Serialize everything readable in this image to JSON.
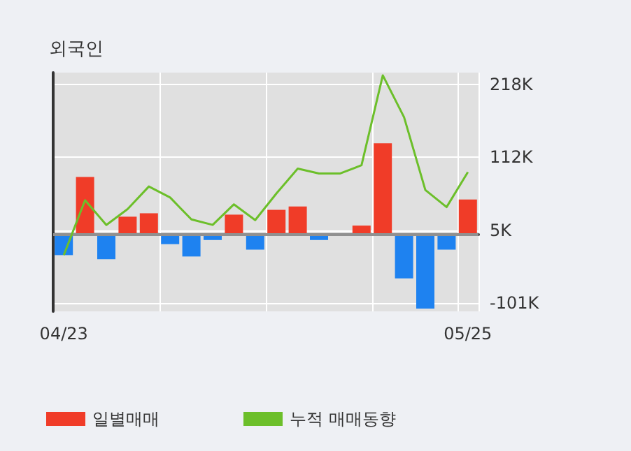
{
  "chart_data": {
    "type": "bar",
    "title": "외국인",
    "categories": [
      "04/23",
      null,
      null,
      null,
      null,
      null,
      null,
      null,
      null,
      null,
      null,
      null,
      null,
      null,
      null,
      null,
      null,
      null,
      null,
      "05/25"
    ],
    "series": [
      {
        "name": "일별매매",
        "color": "#f03c28",
        "colors": [
          "#1e82f0",
          "#f03c28",
          "#1e82f0",
          "#f03c28",
          "#f03c28",
          "#1e82f0",
          "#1e82f0",
          "#1e82f0",
          "#f03c28",
          "#1e82f0",
          "#f03c28",
          "#f03c28",
          "#1e82f0",
          "#f03c28",
          "#f03c28",
          "#f03c28",
          "#1e82f0",
          "#1e82f0",
          "#1e82f0",
          "#f03c28"
        ],
        "values": [
          -31,
          83,
          -37,
          25,
          30,
          -15,
          -33,
          -9,
          28,
          -23,
          35,
          40,
          -9,
          0,
          12,
          132,
          -65,
          -109,
          -23,
          50
        ]
      },
      {
        "name": "누적 매매동향",
        "type": "line",
        "color": "#6cbf2a",
        "values": [
          -31,
          49,
          13,
          36,
          69,
          53,
          21,
          13,
          43,
          20,
          59,
          95,
          88,
          88,
          100,
          231,
          170,
          64,
          39,
          90
        ]
      }
    ],
    "ylim": [
      -113,
      235
    ],
    "yticks": [
      {
        "value": -101,
        "label": "-101K"
      },
      {
        "value": 5,
        "label": "5K"
      },
      {
        "value": 112,
        "label": "112K"
      },
      {
        "value": 218,
        "label": "218K"
      }
    ],
    "ref_lines": [
      {
        "axis": "y",
        "value": 0,
        "color": "#909090"
      }
    ],
    "grid": true,
    "legend": "bottom",
    "marker": "none"
  }
}
